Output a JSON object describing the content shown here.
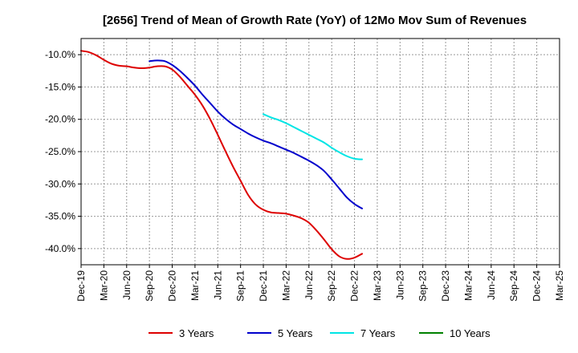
{
  "chart_data": {
    "type": "line",
    "title": "[2656]  Trend of Mean of Growth Rate (YoY) of 12Mo Mov Sum of Revenues",
    "xlabel": "",
    "ylabel": "",
    "x_ticks": [
      "Dec-19",
      "Mar-20",
      "Jun-20",
      "Sep-20",
      "Dec-20",
      "Mar-21",
      "Jun-21",
      "Sep-21",
      "Dec-21",
      "Mar-22",
      "Jun-22",
      "Sep-22",
      "Dec-22",
      "Mar-23",
      "Jun-23",
      "Sep-23",
      "Dec-23",
      "Mar-24",
      "Jun-24",
      "Sep-24",
      "Dec-24",
      "Mar-25"
    ],
    "y_ticks": [
      -10.0,
      -15.0,
      -20.0,
      -25.0,
      -30.0,
      -35.0,
      -40.0
    ],
    "y_tick_labels": [
      "-10.0%",
      "-15.0%",
      "-20.0%",
      "-25.0%",
      "-30.0%",
      "-35.0%",
      "-40.0%"
    ],
    "ylim": [
      -42.5,
      -7.5
    ],
    "grid": true,
    "legend_position": "bottom",
    "series": [
      {
        "name": "3 Years",
        "color": "#dd0000",
        "values": [
          -9.4,
          -9.6,
          -10.1,
          -10.8,
          -11.4,
          -11.7,
          -11.8,
          -12.0,
          -12.1,
          -12.0,
          -11.8,
          -11.8,
          -12.3,
          -13.4,
          -14.8,
          -16.2,
          -17.9,
          -20.0,
          -22.4,
          -24.9,
          -27.3,
          -29.5,
          -31.7,
          -33.2,
          -34.0,
          -34.4,
          -34.5,
          -34.6,
          -34.9,
          -35.3,
          -36.0,
          -37.2,
          -38.6,
          -40.1,
          -41.2,
          -41.6,
          -41.4,
          -40.8
        ]
      },
      {
        "name": "5 Years",
        "color": "#0000cc",
        "values": [
          null,
          null,
          null,
          null,
          null,
          null,
          null,
          null,
          null,
          -11.0,
          -10.9,
          -11.0,
          -11.6,
          -12.5,
          -13.6,
          -14.8,
          -16.2,
          -17.5,
          -18.8,
          -19.9,
          -20.8,
          -21.5,
          -22.2,
          -22.8,
          -23.3,
          -23.7,
          -24.2,
          -24.7,
          -25.2,
          -25.8,
          -26.4,
          -27.1,
          -28.0,
          -29.3,
          -30.7,
          -32.1,
          -33.1,
          -33.8
        ]
      },
      {
        "name": "7 Years",
        "color": "#00e5e5",
        "values": [
          null,
          null,
          null,
          null,
          null,
          null,
          null,
          null,
          null,
          null,
          null,
          null,
          null,
          null,
          null,
          null,
          null,
          null,
          null,
          null,
          null,
          null,
          null,
          null,
          -19.2,
          -19.7,
          -20.1,
          -20.6,
          -21.2,
          -21.8,
          -22.4,
          -23.0,
          -23.6,
          -24.4,
          -25.1,
          -25.7,
          -26.1,
          -26.2
        ]
      },
      {
        "name": "10 Years",
        "color": "#008000",
        "values": []
      }
    ]
  }
}
